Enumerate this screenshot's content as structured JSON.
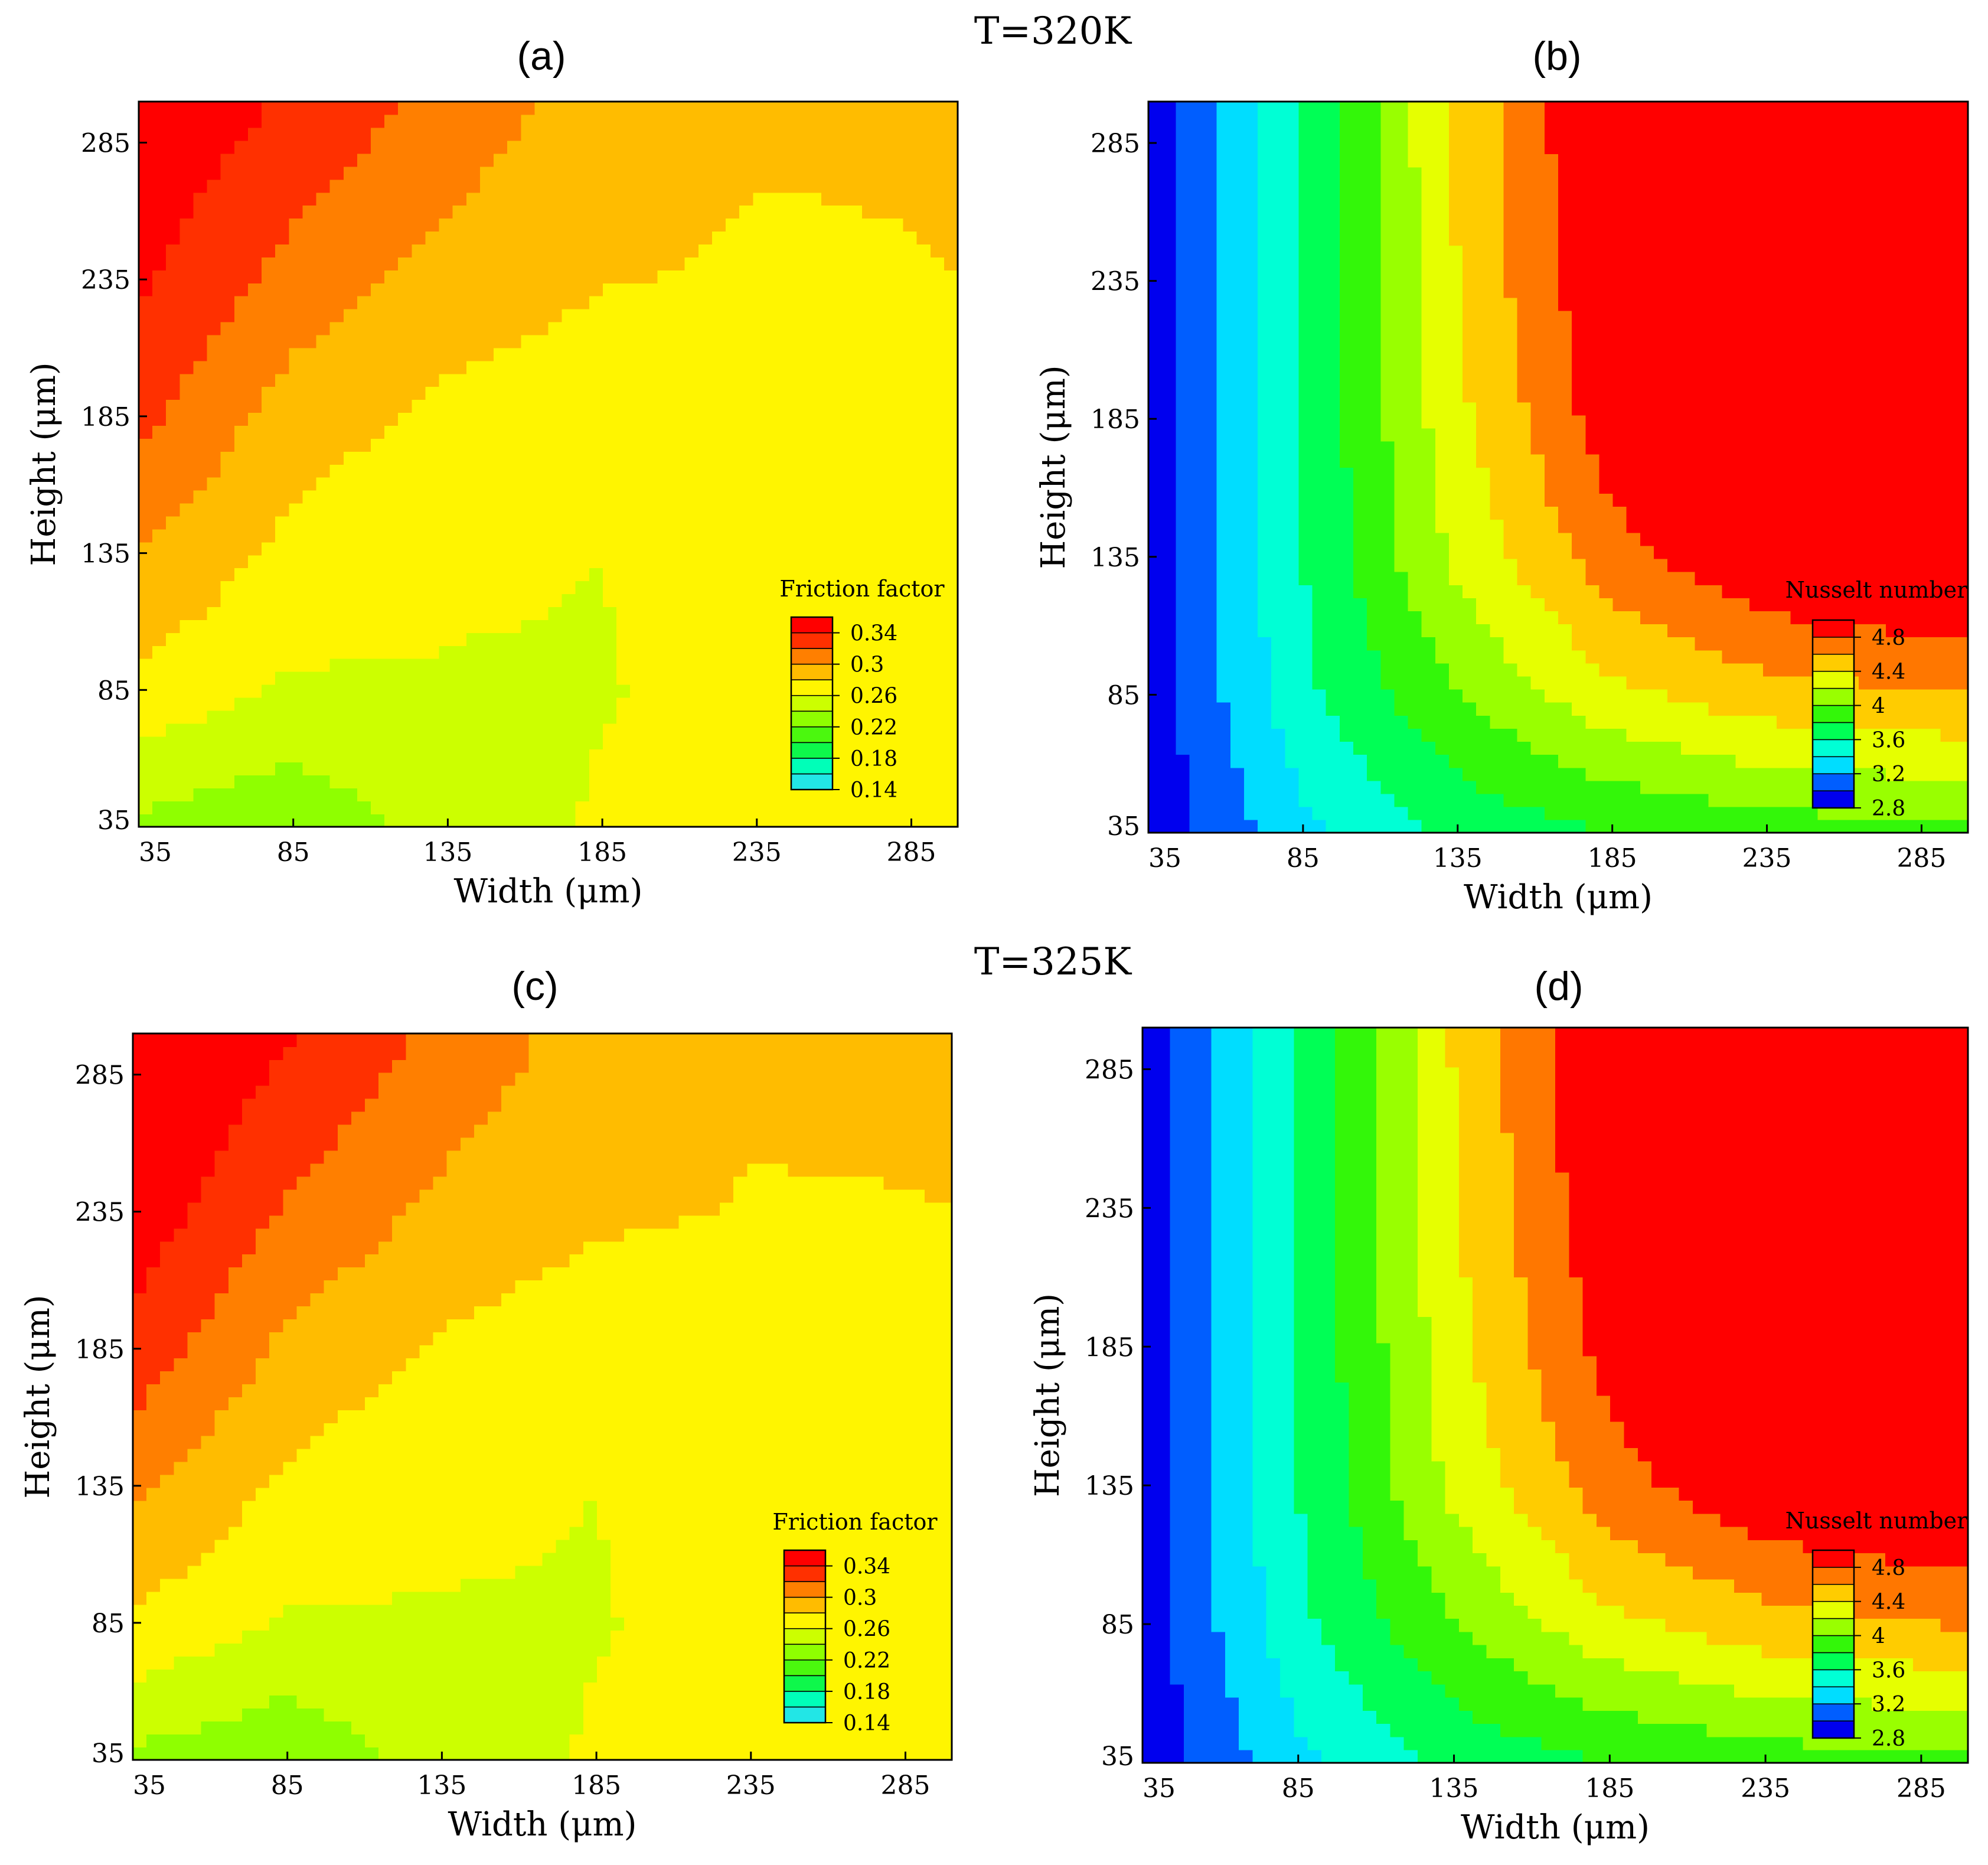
{
  "figure": {
    "temperature_labels": [
      "T=320K",
      "T=325K"
    ],
    "panel_labels": [
      "(a)",
      "(b)",
      "(c)",
      "(d)"
    ]
  },
  "palettes": {
    "friction": [
      "#22e6e6",
      "#00ffcc",
      "#00ff66",
      "#22ee22",
      "#66ff00",
      "#99ff00",
      "#ccff00",
      "#ffff00",
      "#ffcc00",
      "#ffa500",
      "#ff6600",
      "#ff2200",
      "#ff0000"
    ],
    "nusselt": [
      "#0000ee",
      "#0033ff",
      "#0088ff",
      "#00ddff",
      "#00ffff",
      "#00ffaa",
      "#00ff55",
      "#11ee11",
      "#55ff00",
      "#99ff00",
      "#ccff00",
      "#ffff00",
      "#ffcc00",
      "#ff9900",
      "#ff5500",
      "#ff0000"
    ]
  },
  "chart_data": [
    {
      "type": "heatmap",
      "panel": "(a)",
      "xlabel": "Width (μm)",
      "ylabel": "Height (μm)",
      "xticks": [
        35,
        85,
        135,
        185,
        235,
        285
      ],
      "yticks": [
        35,
        85,
        135,
        185,
        235,
        285
      ],
      "xlim": [
        35,
        300
      ],
      "ylim": [
        35,
        300
      ],
      "legend_title": "Friction factor",
      "legend_ticks": [
        "0.34",
        "0.3",
        "0.26",
        "0.22",
        "0.18",
        "0.14"
      ],
      "legend_levels": [
        0.14,
        0.16,
        0.18,
        0.2,
        0.22,
        0.24,
        0.26,
        0.28,
        0.3,
        0.32,
        0.34,
        0.36
      ],
      "legend_position": "bottom-right",
      "palette": "friction",
      "x": [
        35,
        85,
        135,
        185,
        235,
        300
      ],
      "y": [
        35,
        85,
        135,
        185,
        235,
        300
      ],
      "z": [
        [
          0.235,
          0.225,
          0.248,
          0.262,
          0.27,
          0.273
        ],
        [
          0.275,
          0.257,
          0.259,
          0.259,
          0.266,
          0.268
        ],
        [
          0.3,
          0.274,
          0.262,
          0.26,
          0.268,
          0.272
        ],
        [
          0.326,
          0.29,
          0.275,
          0.268,
          0.272,
          0.276
        ],
        [
          0.343,
          0.312,
          0.292,
          0.281,
          0.278,
          0.28
        ],
        [
          0.36,
          0.337,
          0.313,
          0.29,
          0.282,
          0.281
        ]
      ]
    },
    {
      "type": "heatmap",
      "panel": "(b)",
      "xlabel": "Width (μm)",
      "ylabel": "Height (μm)",
      "xticks": [
        35,
        85,
        135,
        185,
        235,
        285
      ],
      "yticks": [
        35,
        85,
        135,
        185,
        235,
        285
      ],
      "xlim": [
        35,
        300
      ],
      "ylim": [
        35,
        300
      ],
      "legend_title": "Nusselt number",
      "legend_ticks": [
        "4.8",
        "4.4",
        "4",
        "3.6",
        "3.2",
        "2.8"
      ],
      "legend_levels": [
        2.8,
        3.0,
        3.2,
        3.4,
        3.6,
        3.8,
        4.0,
        4.2,
        4.4,
        4.6,
        4.8,
        5.0
      ],
      "legend_position": "bottom-right",
      "palette": "nusselt",
      "x": [
        35,
        85,
        135,
        185,
        235,
        300
      ],
      "y": [
        35,
        85,
        135,
        185,
        235,
        300
      ],
      "z": [
        [
          2.85,
          3.35,
          3.65,
          3.8,
          3.9,
          3.95
        ],
        [
          2.88,
          3.55,
          4.0,
          4.35,
          4.52,
          4.6
        ],
        [
          2.88,
          3.6,
          4.25,
          4.72,
          5.0,
          5.1
        ],
        [
          2.88,
          3.6,
          4.35,
          4.92,
          5.2,
          5.3
        ],
        [
          2.88,
          3.6,
          4.4,
          5.0,
          5.3,
          5.4
        ],
        [
          2.88,
          3.6,
          4.45,
          5.05,
          5.35,
          5.45
        ]
      ]
    },
    {
      "type": "heatmap",
      "panel": "(c)",
      "xlabel": "Width (μm)",
      "ylabel": "Height (μm)",
      "xticks": [
        35,
        85,
        135,
        185,
        235,
        285
      ],
      "yticks": [
        35,
        85,
        135,
        185,
        235,
        285
      ],
      "xlim": [
        35,
        300
      ],
      "ylim": [
        35,
        300
      ],
      "legend_title": "Friction factor",
      "legend_ticks": [
        "0.34",
        "0.3",
        "0.26",
        "0.22",
        "0.18",
        "0.14"
      ],
      "legend_levels": [
        0.14,
        0.16,
        0.18,
        0.2,
        0.22,
        0.24,
        0.26,
        0.28,
        0.3,
        0.32,
        0.34,
        0.36
      ],
      "legend_position": "bottom-right",
      "palette": "friction",
      "x": [
        35,
        85,
        135,
        185,
        235,
        300
      ],
      "y": [
        35,
        85,
        135,
        185,
        235,
        300
      ],
      "z": [
        [
          0.235,
          0.225,
          0.248,
          0.262,
          0.27,
          0.273
        ],
        [
          0.277,
          0.257,
          0.259,
          0.259,
          0.266,
          0.268
        ],
        [
          0.305,
          0.276,
          0.263,
          0.26,
          0.268,
          0.272
        ],
        [
          0.333,
          0.295,
          0.277,
          0.268,
          0.272,
          0.276
        ],
        [
          0.352,
          0.318,
          0.295,
          0.283,
          0.279,
          0.28
        ],
        [
          0.368,
          0.342,
          0.315,
          0.291,
          0.283,
          0.281
        ]
      ]
    },
    {
      "type": "heatmap",
      "panel": "(d)",
      "xlabel": "Width (μm)",
      "ylabel": "Height (μm)",
      "xticks": [
        35,
        85,
        135,
        185,
        235,
        285
      ],
      "yticks": [
        35,
        85,
        135,
        185,
        235,
        285
      ],
      "xlim": [
        35,
        300
      ],
      "ylim": [
        35,
        300
      ],
      "legend_title": "Nusselt number",
      "legend_ticks": [
        "4.8",
        "4.4",
        "4",
        "3.6",
        "3.2",
        "2.8"
      ],
      "legend_levels": [
        2.8,
        3.0,
        3.2,
        3.4,
        3.6,
        3.8,
        4.0,
        4.2,
        4.4,
        4.6,
        4.8,
        5.0
      ],
      "legend_position": "bottom-right",
      "palette": "nusselt",
      "x": [
        35,
        85,
        135,
        185,
        235,
        300
      ],
      "y": [
        35,
        85,
        135,
        185,
        235,
        300
      ],
      "z": [
        [
          2.85,
          3.35,
          3.65,
          3.8,
          3.9,
          3.95
        ],
        [
          2.88,
          3.55,
          4.0,
          4.35,
          4.52,
          4.62
        ],
        [
          2.88,
          3.6,
          4.25,
          4.72,
          4.98,
          5.1
        ],
        [
          2.88,
          3.6,
          4.33,
          4.88,
          5.15,
          5.28
        ],
        [
          2.88,
          3.6,
          4.38,
          4.97,
          5.27,
          5.38
        ],
        [
          2.88,
          3.6,
          4.42,
          5.02,
          5.32,
          5.44
        ]
      ]
    }
  ]
}
